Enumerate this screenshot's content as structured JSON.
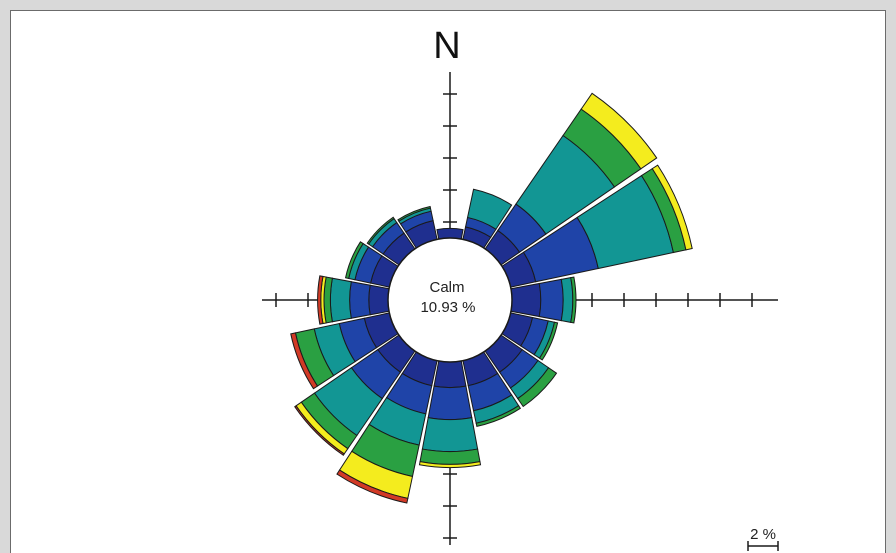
{
  "chart_data": {
    "type": "windrose",
    "north_label": "N",
    "calm_label": "Calm",
    "calm_value": "10.93 %",
    "scale_label": "2 %",
    "tick_interval_percent": 1,
    "colors": [
      "#1f2f8f",
      "#1f44a8",
      "#129694",
      "#2aa042",
      "#f4ec1e",
      "#d23a26"
    ],
    "directions": [
      {
        "dir": "N",
        "segments": [
          0.3,
          0.0,
          0.0,
          0.0,
          0.0,
          0.0
        ]
      },
      {
        "dir": "NNE",
        "segments": [
          0.4,
          0.3,
          0.9,
          0.0,
          0.0,
          0.0
        ]
      },
      {
        "dir": "NE",
        "segments": [
          0.7,
          1.0,
          2.6,
          1.0,
          0.6,
          0.0
        ]
      },
      {
        "dir": "ENE",
        "segments": [
          0.8,
          2.0,
          2.4,
          0.4,
          0.2,
          0.0
        ]
      },
      {
        "dir": "E",
        "segments": [
          0.9,
          0.7,
          0.3,
          0.1,
          0.0,
          0.0
        ]
      },
      {
        "dir": "ESE",
        "segments": [
          0.7,
          0.5,
          0.2,
          0.1,
          0.0,
          0.0
        ]
      },
      {
        "dir": "SE",
        "segments": [
          0.8,
          0.6,
          0.4,
          0.3,
          0.0,
          0.0
        ]
      },
      {
        "dir": "SSE",
        "segments": [
          0.8,
          0.8,
          0.4,
          0.1,
          0.0,
          0.0
        ]
      },
      {
        "dir": "S",
        "segments": [
          0.8,
          1.0,
          1.0,
          0.4,
          0.1,
          0.0
        ]
      },
      {
        "dir": "SSW",
        "segments": [
          0.8,
          0.9,
          1.0,
          1.0,
          0.7,
          0.15
        ]
      },
      {
        "dir": "SW",
        "segments": [
          0.8,
          1.0,
          1.4,
          0.5,
          0.2,
          0.05
        ]
      },
      {
        "dir": "WSW",
        "segments": [
          0.8,
          0.8,
          0.8,
          0.6,
          0.0,
          0.15
        ]
      },
      {
        "dir": "W",
        "segments": [
          0.6,
          0.6,
          0.6,
          0.2,
          0.1,
          0.1
        ]
      },
      {
        "dir": "WNW",
        "segments": [
          0.6,
          0.5,
          0.2,
          0.1,
          0.0,
          0.0
        ]
      },
      {
        "dir": "NW",
        "segments": [
          0.6,
          0.4,
          0.15,
          0.05,
          0.0,
          0.0
        ]
      },
      {
        "dir": "NNW",
        "segments": [
          0.6,
          0.3,
          0.1,
          0.05,
          0.0,
          0.0
        ]
      }
    ]
  }
}
